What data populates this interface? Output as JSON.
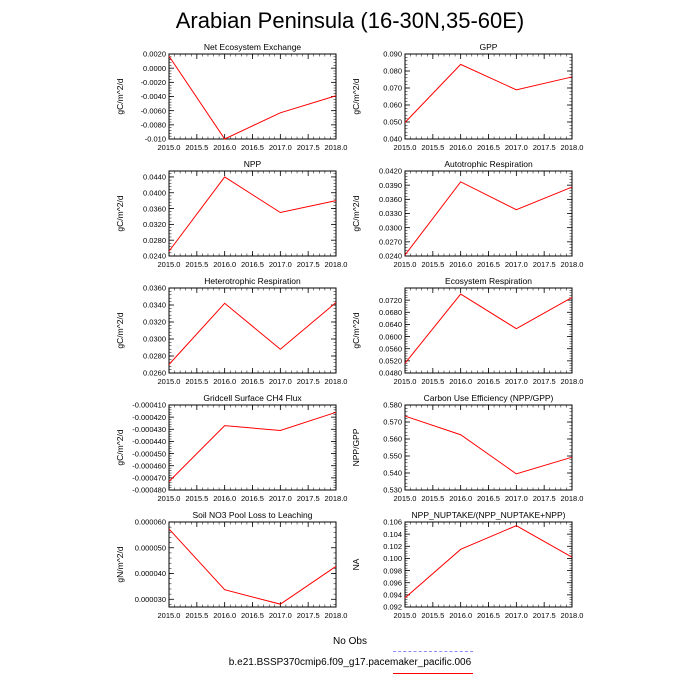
{
  "figure": {
    "title": "Arabian Peninsula (16-30N,35-60E)"
  },
  "legend": {
    "obs_label": "No Obs",
    "obs_color": "#8c8cff",
    "model_label": "b.e21.BSSP370cmip6.f09_g17.pacemaker_pacific.006",
    "model_color": "#ff0000"
  },
  "chart_data": [
    {
      "type": "line",
      "title": "Net Ecosystem Exchange",
      "ylabel": "gC/m^2/d",
      "x": [
        2015.0,
        2016.0,
        2017.0,
        2018.0
      ],
      "xticks": [
        "2015.0",
        "2015.5",
        "2016.0",
        "2016.5",
        "2017.0",
        "2017.5",
        "2018.0"
      ],
      "yticks": [
        "0.0020",
        "0.0000",
        "-0.0020",
        "-0.0040",
        "-0.0060",
        "-0.0080",
        "-0.010"
      ],
      "ylim": [
        -0.01,
        0.002
      ],
      "series": [
        {
          "values": [
            0.0017,
            -0.01,
            -0.0063,
            -0.0039
          ],
          "color": "#ff0000"
        }
      ]
    },
    {
      "type": "line",
      "title": "GPP",
      "ylabel": "gC/m^2/d",
      "x": [
        2015.0,
        2016.0,
        2017.0,
        2018.0
      ],
      "xticks": [
        "2015.0",
        "2015.5",
        "2016.0",
        "2016.5",
        "2017.0",
        "2017.5",
        "2018.0"
      ],
      "yticks": [
        "0.090",
        "0.080",
        "0.070",
        "0.060",
        "0.050",
        "0.040"
      ],
      "ylim": [
        0.04,
        0.09
      ],
      "series": [
        {
          "values": [
            0.0497,
            0.0839,
            0.0689,
            0.0765
          ],
          "color": "#ff0000"
        }
      ]
    },
    {
      "type": "line",
      "title": "NPP",
      "ylabel": "gC/m^2/d",
      "x": [
        2015.0,
        2016.0,
        2017.0,
        2018.0
      ],
      "xticks": [
        "2015.0",
        "2015.5",
        "2016.0",
        "2016.5",
        "2017.0",
        "2017.5",
        "2018.0"
      ],
      "yticks": [
        "0.0440",
        "0.0400",
        "0.0360",
        "0.0320",
        "0.0280",
        "0.0240"
      ],
      "ylim": [
        0.024,
        0.0455
      ],
      "series": [
        {
          "values": [
            0.0252,
            0.044,
            0.035,
            0.038
          ],
          "color": "#ff0000"
        }
      ]
    },
    {
      "type": "line",
      "title": "Autotrophic Respiration",
      "ylabel": "gC/m^2/d",
      "x": [
        2015.0,
        2016.0,
        2017.0,
        2018.0
      ],
      "xticks": [
        "2015.0",
        "2015.5",
        "2016.0",
        "2016.5",
        "2017.0",
        "2017.5",
        "2018.0"
      ],
      "yticks": [
        "0.0420",
        "0.0390",
        "0.0360",
        "0.0330",
        "0.0300",
        "0.0270",
        "0.0240"
      ],
      "ylim": [
        0.024,
        0.042
      ],
      "series": [
        {
          "values": [
            0.0242,
            0.0397,
            0.0338,
            0.0386
          ],
          "color": "#ff0000"
        }
      ]
    },
    {
      "type": "line",
      "title": "Heterotrophic Respiration",
      "ylabel": "gC/m^2/d",
      "x": [
        2015.0,
        2016.0,
        2017.0,
        2018.0
      ],
      "xticks": [
        "2015.0",
        "2015.5",
        "2016.0",
        "2016.5",
        "2017.0",
        "2017.5",
        "2018.0"
      ],
      "yticks": [
        "0.0360",
        "0.0340",
        "0.0320",
        "0.0300",
        "0.0280",
        "0.0260"
      ],
      "ylim": [
        0.026,
        0.036
      ],
      "series": [
        {
          "values": [
            0.027,
            0.0342,
            0.0288,
            0.0343
          ],
          "color": "#ff0000"
        }
      ]
    },
    {
      "type": "line",
      "title": "Ecosystem Respiration",
      "ylabel": "gC/m^2/d",
      "x": [
        2015.0,
        2016.0,
        2017.0,
        2018.0
      ],
      "xticks": [
        "2015.0",
        "2015.5",
        "2016.0",
        "2016.5",
        "2017.0",
        "2017.5",
        "2018.0"
      ],
      "yticks": [
        "0.0720",
        "0.0680",
        "0.0640",
        "0.0600",
        "0.0560",
        "0.0520",
        "0.0480"
      ],
      "ylim": [
        0.048,
        0.076
      ],
      "series": [
        {
          "values": [
            0.0512,
            0.074,
            0.0626,
            0.0729
          ],
          "color": "#ff0000"
        }
      ]
    },
    {
      "type": "line",
      "title": "Gridcell Surface CH4 Flux",
      "ylabel": "gC/m^2/d",
      "x": [
        2015.0,
        2016.0,
        2017.0,
        2018.0
      ],
      "xticks": [
        "2015.0",
        "2015.5",
        "2016.0",
        "2016.5",
        "2017.0",
        "2017.5",
        "2018.0"
      ],
      "yticks": [
        "-0.000410",
        "-0.000420",
        "-0.000430",
        "-0.000440",
        "-0.000450",
        "-0.000460",
        "-0.000470",
        "-0.000480"
      ],
      "ylim": [
        -0.00048,
        -0.00041
      ],
      "series": [
        {
          "values": [
            -0.000473,
            -0.000427,
            -0.000431,
            -0.000416
          ],
          "color": "#ff0000"
        }
      ]
    },
    {
      "type": "line",
      "title": "Carbon Use Efficiency (NPP/GPP)",
      "ylabel": "NPP/GPP",
      "x": [
        2015.0,
        2016.0,
        2017.0,
        2018.0
      ],
      "xticks": [
        "2015.0",
        "2015.5",
        "2016.0",
        "2016.5",
        "2017.0",
        "2017.5",
        "2018.0"
      ],
      "yticks": [
        "0.580",
        "0.570",
        "0.560",
        "0.550",
        "0.540",
        "0.530"
      ],
      "ylim": [
        0.53,
        0.58
      ],
      "series": [
        {
          "values": [
            0.5735,
            0.5625,
            0.5395,
            0.5493
          ],
          "color": "#ff0000"
        }
      ]
    },
    {
      "type": "line",
      "title": "Soil NO3 Pool Loss to Leaching",
      "ylabel": "gN/m^2/d",
      "x": [
        2015.0,
        2016.0,
        2017.0,
        2018.0
      ],
      "xticks": [
        "2015.0",
        "2015.5",
        "2016.0",
        "2016.5",
        "2017.0",
        "2017.5",
        "2018.0"
      ],
      "yticks": [
        "0.000060",
        "0.000050",
        "0.000040",
        "0.000030"
      ],
      "ylim": [
        2.7e-05,
        6e-05
      ],
      "series": [
        {
          "values": [
            5.73e-05,
            3.37e-05,
            2.81e-05,
            4.28e-05
          ],
          "color": "#ff0000"
        }
      ]
    },
    {
      "type": "line",
      "title": "NPP_NUPTAKE/(NPP_NUPTAKE+NPP)",
      "ylabel": "NA",
      "x": [
        2015.0,
        2016.0,
        2017.0,
        2018.0
      ],
      "xticks": [
        "2015.0",
        "2015.5",
        "2016.0",
        "2016.5",
        "2017.0",
        "2017.5",
        "2018.0"
      ],
      "yticks": [
        "0.106",
        "0.104",
        "0.102",
        "0.100",
        "0.098",
        "0.096",
        "0.094",
        "0.092"
      ],
      "ylim": [
        0.092,
        0.106
      ],
      "series": [
        {
          "values": [
            0.0935,
            0.1015,
            0.1054,
            0.1002
          ],
          "color": "#ff0000"
        }
      ]
    }
  ]
}
